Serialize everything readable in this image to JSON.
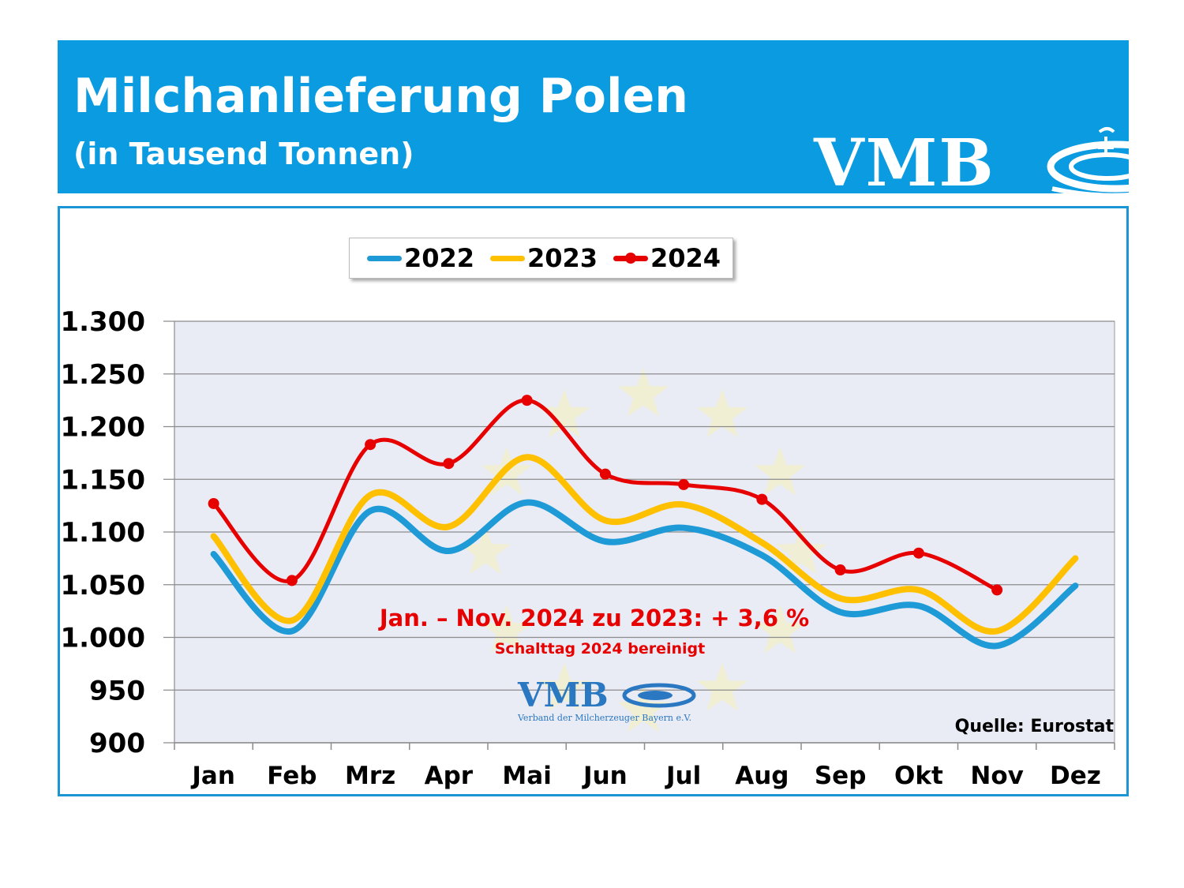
{
  "header": {
    "title": "Milchanlieferung Polen",
    "subtitle": "(in Tausend Tonnen)",
    "logo_text": "VMB",
    "bg_color": "#0a9be0"
  },
  "watermark": {
    "logo_text": "VMB",
    "tagline": "Verband der Milcherzeuger Bayern e.V."
  },
  "chart_data": {
    "type": "line",
    "title": "Milchanlieferung Polen",
    "subtitle": "(in Tausend Tonnen)",
    "categories": [
      "Jan",
      "Feb",
      "Mrz",
      "Apr",
      "Mai",
      "Jun",
      "Jul",
      "Aug",
      "Sep",
      "Okt",
      "Nov",
      "Dez"
    ],
    "ylim": [
      900,
      1300
    ],
    "yticks": [
      900,
      950,
      1000,
      1050,
      1100,
      1150,
      1200,
      1250,
      1300
    ],
    "ytick_labels": [
      "900",
      "950",
      "1.000",
      "1.050",
      "1.100",
      "1.150",
      "1.200",
      "1.250",
      "1.300"
    ],
    "grid": true,
    "legend_position": "top-center",
    "series": [
      {
        "name": "2022",
        "color": "#1e9ad6",
        "markers": false,
        "values": [
          1079,
          1006,
          1120,
          1082,
          1128,
          1091,
          1104,
          1078,
          1024,
          1030,
          992,
          1049
        ]
      },
      {
        "name": "2023",
        "color": "#ffc000",
        "markers": false,
        "values": [
          1096,
          1016,
          1135,
          1105,
          1171,
          1111,
          1126,
          1090,
          1037,
          1045,
          1006,
          1075
        ]
      },
      {
        "name": "2024",
        "color": "#e60000",
        "markers": true,
        "values": [
          1127,
          1054,
          1183,
          1165,
          1225,
          1155,
          1145,
          1131,
          1064,
          1080,
          1045,
          null
        ]
      }
    ],
    "annotations": [
      "Jan. – Nov. 2024 zu 2023: + 3,6 %",
      "Schalttag 2024 bereinigt"
    ],
    "source": "Quelle: Eurostat"
  }
}
